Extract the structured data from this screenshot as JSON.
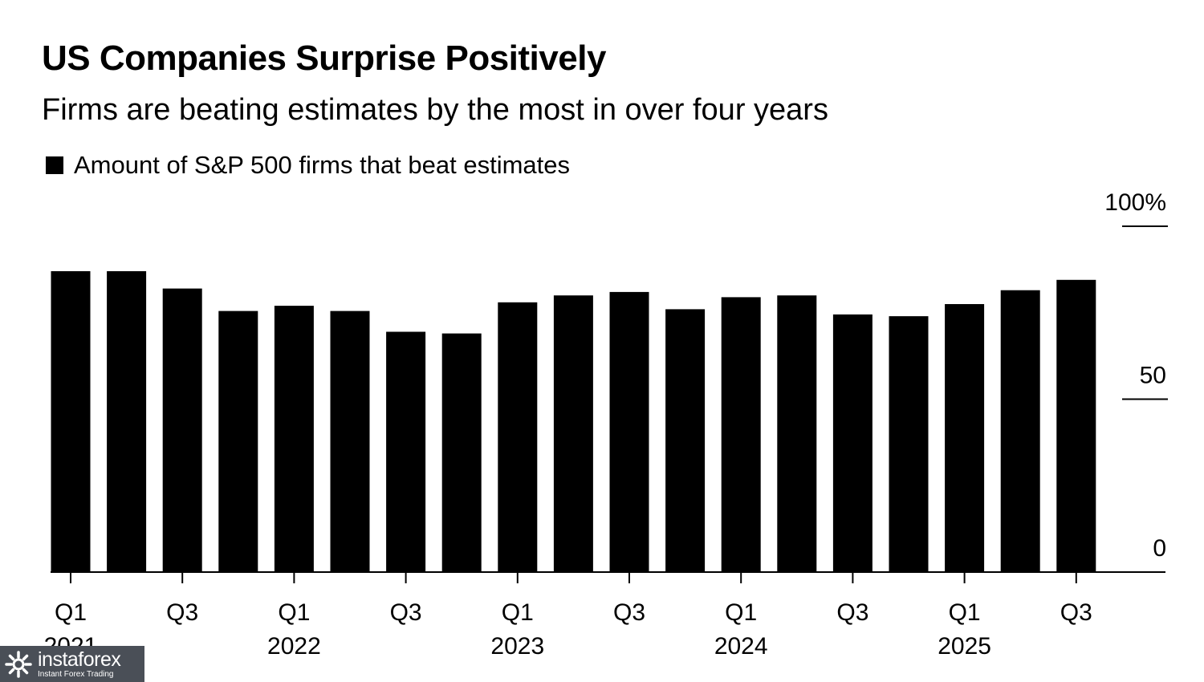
{
  "title": "US Companies Surprise Positively",
  "subtitle": "Firms are beating estimates by the most in over four years",
  "legend_label": "Amount of S&P 500 firms that beat estimates",
  "watermark": {
    "brand": "instaforex",
    "tagline": "Instant Forex Trading"
  },
  "colors": {
    "bar": "#000000",
    "axis": "#000000",
    "watermark_bg": "#4a4f57"
  },
  "chart_data": {
    "type": "bar",
    "title": "US Companies Surprise Positively",
    "subtitle": "Firms are beating estimates by the most in over four years",
    "series": [
      {
        "name": "Amount of S&P 500 firms that beat estimates",
        "values": [
          87,
          87,
          82,
          75.5,
          77,
          75.5,
          69.5,
          69,
          78,
          80,
          81,
          76,
          79.5,
          80,
          74.5,
          74,
          77.5,
          81.5,
          84.5
        ]
      }
    ],
    "categories": [
      "2021 Q1",
      "2021 Q2",
      "2021 Q3",
      "2021 Q4",
      "2022 Q1",
      "2022 Q2",
      "2022 Q3",
      "2022 Q4",
      "2023 Q1",
      "2023 Q2",
      "2023 Q3",
      "2023 Q4",
      "2024 Q1",
      "2024 Q2",
      "2024 Q3",
      "2024 Q4",
      "2025 Q1",
      "2025 Q2",
      "2025 Q3"
    ],
    "x_ticks": [
      {
        "index": 0,
        "quarter": "Q1",
        "year": "2021"
      },
      {
        "index": 2,
        "quarter": "Q3",
        "year": ""
      },
      {
        "index": 4,
        "quarter": "Q1",
        "year": "2022"
      },
      {
        "index": 6,
        "quarter": "Q3",
        "year": ""
      },
      {
        "index": 8,
        "quarter": "Q1",
        "year": "2023"
      },
      {
        "index": 10,
        "quarter": "Q3",
        "year": ""
      },
      {
        "index": 12,
        "quarter": "Q1",
        "year": "2024"
      },
      {
        "index": 14,
        "quarter": "Q3",
        "year": ""
      },
      {
        "index": 16,
        "quarter": "Q1",
        "year": "2025"
      },
      {
        "index": 18,
        "quarter": "Q3",
        "year": ""
      }
    ],
    "y_ticks": [
      {
        "value": 0,
        "label": "0"
      },
      {
        "value": 50,
        "label": "50"
      },
      {
        "value": 100,
        "label": "100%"
      }
    ],
    "ylim": [
      0,
      100
    ],
    "y_axis_position": "right",
    "grid": false,
    "legend_position": "top-left"
  }
}
